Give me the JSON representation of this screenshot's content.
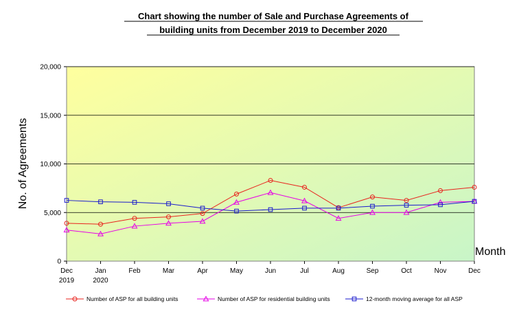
{
  "chart_data": {
    "type": "line",
    "title_line1": "Chart showing the number of  Sale and Purchase Agreements of",
    "title_line2": "building units from December 2019 to December 2020",
    "ylabel": "No. of Agreements",
    "xlabel": "Month",
    "ylim": [
      0,
      20000
    ],
    "yticks": [
      "0",
      "5,000",
      "10,000",
      "15,000",
      "20,000"
    ],
    "ytick_values": [
      0,
      5000,
      10000,
      15000,
      20000
    ],
    "categories": [
      [
        "Dec",
        "2019"
      ],
      [
        "Jan",
        "2020"
      ],
      [
        "Feb",
        ""
      ],
      [
        "Mar",
        ""
      ],
      [
        "Apr",
        ""
      ],
      [
        "May",
        ""
      ],
      [
        "Jun",
        ""
      ],
      [
        "Jul",
        ""
      ],
      [
        "Aug",
        ""
      ],
      [
        "Sep",
        ""
      ],
      [
        "Oct",
        ""
      ],
      [
        "Nov",
        ""
      ],
      [
        "Dec",
        ""
      ]
    ],
    "grid": "horizontal",
    "legend_placement": "bottom",
    "background_gradient": [
      "#ffff9e",
      "#c8f5c8"
    ],
    "series": [
      {
        "name": "Number of ASP for all building units",
        "color": "#e8231e",
        "marker": "circle",
        "values": [
          3900,
          3800,
          4400,
          4550,
          4900,
          6900,
          8300,
          7600,
          5500,
          6600,
          6250,
          7250,
          7600
        ]
      },
      {
        "name": "Number of ASP for residential building units",
        "color": "#e600e6",
        "marker": "triangle",
        "values": [
          3200,
          2800,
          3600,
          3900,
          4100,
          6050,
          7050,
          6200,
          4400,
          5000,
          5000,
          6050,
          6150
        ]
      },
      {
        "name": "12-month moving average for all ASP",
        "color": "#1a1acc",
        "marker": "square",
        "values": [
          6250,
          6100,
          6050,
          5900,
          5450,
          5150,
          5300,
          5450,
          5450,
          5650,
          5750,
          5800,
          6150
        ]
      }
    ]
  }
}
